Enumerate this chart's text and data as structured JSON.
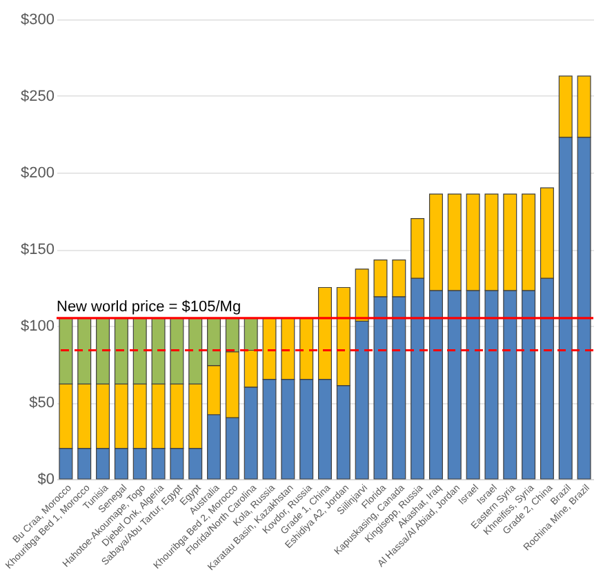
{
  "chart_data": {
    "type": "bar",
    "stacked": true,
    "categories": [
      "Bu Craa, Morocco",
      "Khouribga Bed 1, Morocco",
      "Tunisia",
      "Senegal",
      "Hahotoe-Akoumape, Togo",
      "Djebel Onk, Algeria",
      "Sabaya/Abu Tartur, Egypt",
      "Egypt",
      "Australia",
      "Khouribga Bed 2, Morocco",
      "Florida/North Carolina",
      "Kola, Russia",
      "Karatau Basin, Kazakhstan",
      "Kovdor, Russia",
      "Grade 1, China",
      "Eshidiya A2, Jordan",
      "Siilinjarvi",
      "Florida",
      "Kapuskasing, Canada",
      "Kingisepp, Russia",
      "Akashat, Iraq",
      "Al Hassa/Al Abiad, Jordan",
      "Israel",
      "Israel",
      "Eastern Syria",
      "Khneifiss, Syria",
      "Grade 2, China",
      "Brazil",
      "Rochina Mine, Brazil"
    ],
    "series": [
      {
        "color": "#4f81bd",
        "values": [
          20,
          20,
          20,
          20,
          20,
          20,
          20,
          20,
          42,
          40,
          60,
          65,
          65,
          65,
          65,
          61,
          103,
          119,
          119,
          131,
          123,
          123,
          123,
          123,
          123,
          123,
          131,
          223,
          223
        ]
      },
      {
        "color": "#ffc000",
        "values": [
          42,
          42,
          42,
          42,
          42,
          42,
          42,
          42,
          32,
          43,
          24,
          40,
          40,
          40,
          60,
          64,
          34,
          24,
          24,
          39,
          63,
          63,
          63,
          63,
          63,
          63,
          59,
          40,
          40
        ]
      },
      {
        "color": "#9bbb59",
        "values": [
          43,
          43,
          43,
          43,
          43,
          43,
          43,
          43,
          31,
          22,
          21,
          null,
          null,
          null,
          null,
          null,
          null,
          null,
          null,
          null,
          null,
          null,
          null,
          null,
          null,
          null,
          null,
          null,
          null
        ]
      }
    ],
    "ylim": [
      0,
      300
    ],
    "yticks": [
      {
        "value": 0,
        "label": "$0"
      },
      {
        "value": 50,
        "label": "$50"
      },
      {
        "value": 100,
        "label": "$100"
      },
      {
        "value": 150,
        "label": "$150"
      },
      {
        "value": 200,
        "label": "$200"
      },
      {
        "value": 250,
        "label": "$250"
      },
      {
        "value": 300,
        "label": "$300"
      }
    ],
    "grid": "y",
    "legend": false,
    "ref_lines": [
      {
        "axis": "y",
        "value": 105,
        "label": "New world price = $105/Mg",
        "color": "#ff0000",
        "line_style": "solid"
      },
      {
        "axis": "y",
        "value": 84,
        "color": "#ff0000",
        "line_style": "dashed"
      }
    ]
  }
}
